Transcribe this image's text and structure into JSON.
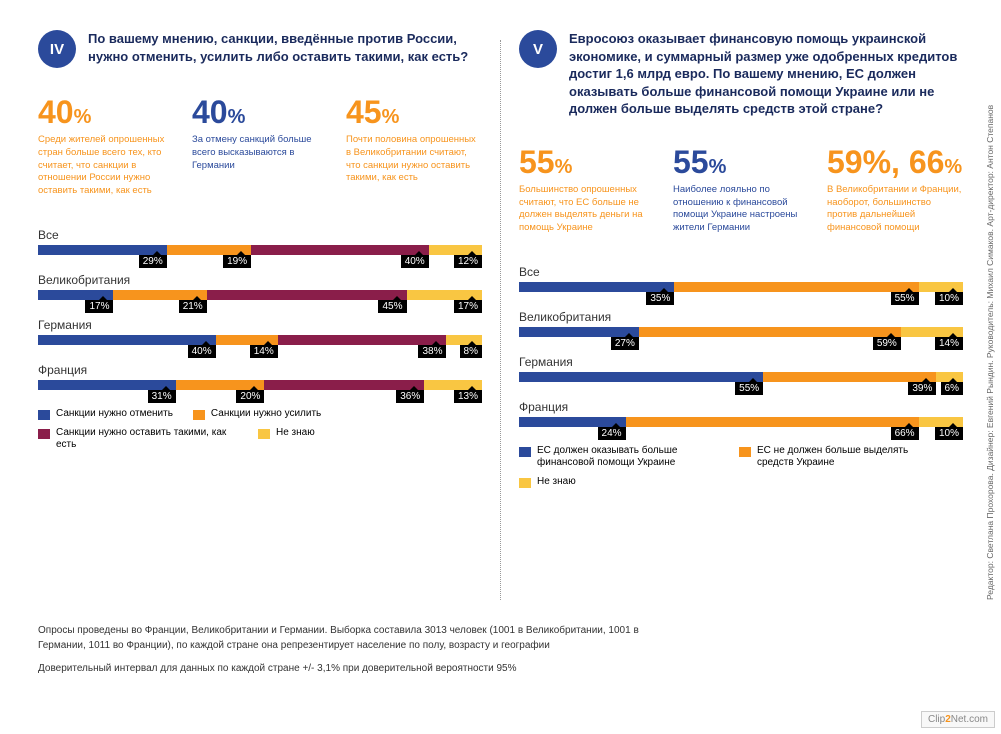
{
  "colors": {
    "blue": "#2b4a9b",
    "orange": "#f7941d",
    "maroon": "#8a1e4a",
    "yellow": "#f9c642",
    "text_dark": "#1a2a5c",
    "text_gray": "#555555"
  },
  "left": {
    "roman": "IV",
    "badge_color": "#2b4a9b",
    "question_color": "#1a2a5c",
    "question": "По вашему мнению, санкции, введённые против России, нужно отменить, усилить либо оставить такими, как есть?",
    "stats": [
      {
        "value": "40",
        "pct": "%",
        "color": "#f7941d",
        "desc": "Среди жителей опрошенных стран больше всего тех, кто считает, что санкции в отношении России нужно оставить такими, как есть"
      },
      {
        "value": "40",
        "pct": "%",
        "color": "#2b4a9b",
        "desc": "За отмену санкций больше всего высказываются в Германии"
      },
      {
        "value": "45",
        "pct": "%",
        "color": "#f7941d",
        "desc": "Почти половина опрошенных в Великобритании считают, что санкции нужно оставить такими, как есть"
      }
    ],
    "rows": [
      {
        "label": "Все",
        "segments": [
          {
            "w": 29,
            "c": "#2b4a9b",
            "v": "29%"
          },
          {
            "w": 19,
            "c": "#f7941d",
            "v": "19%"
          },
          {
            "w": 40,
            "c": "#8a1e4a",
            "v": "40%"
          },
          {
            "w": 12,
            "c": "#f9c642",
            "v": "12%"
          }
        ]
      },
      {
        "label": "Великобритания",
        "segments": [
          {
            "w": 17,
            "c": "#2b4a9b",
            "v": "17%"
          },
          {
            "w": 21,
            "c": "#f7941d",
            "v": "21%"
          },
          {
            "w": 45,
            "c": "#8a1e4a",
            "v": "45%"
          },
          {
            "w": 17,
            "c": "#f9c642",
            "v": "17%"
          }
        ]
      },
      {
        "label": "Германия",
        "segments": [
          {
            "w": 40,
            "c": "#2b4a9b",
            "v": "40%"
          },
          {
            "w": 14,
            "c": "#f7941d",
            "v": "14%"
          },
          {
            "w": 38,
            "c": "#8a1e4a",
            "v": "38%"
          },
          {
            "w": 8,
            "c": "#f9c642",
            "v": "8%"
          }
        ]
      },
      {
        "label": "Франция",
        "segments": [
          {
            "w": 31,
            "c": "#2b4a9b",
            "v": "31%"
          },
          {
            "w": 20,
            "c": "#f7941d",
            "v": "20%"
          },
          {
            "w": 36,
            "c": "#8a1e4a",
            "v": "36%"
          },
          {
            "w": 13,
            "c": "#f9c642",
            "v": "13%"
          }
        ]
      }
    ],
    "legend": [
      {
        "c": "#2b4a9b",
        "t": "Санкции нужно отменить"
      },
      {
        "c": "#f7941d",
        "t": "Санкции нужно усилить"
      },
      {
        "c": "#8a1e4a",
        "t": "Санкции нужно оставить такими, как есть"
      },
      {
        "c": "#f9c642",
        "t": "Не знаю"
      }
    ]
  },
  "right": {
    "roman": "V",
    "badge_color": "#2b4a9b",
    "question_color": "#1a2a5c",
    "question": "Евросоюз оказывает финансовую помощь украинской экономике, и суммарный размер уже одобренных кредитов достиг 1,6 млрд евро. По вашему мнению, ЕС должен оказывать больше финансовой помощи Украине или не должен больше выделять средств этой стране?",
    "stats": [
      {
        "value": "55",
        "pct": "%",
        "color": "#f7941d",
        "desc": "Большинство опрошенных считают, что ЕС больше не должен выделять деньги на помощь Украине"
      },
      {
        "value": "55",
        "pct": "%",
        "color": "#2b4a9b",
        "desc": "Наиболее лояльно по отношению к финансовой помощи Украине настроены жители Германии"
      },
      {
        "value": "59%, 66",
        "pct": "%",
        "color": "#f7941d",
        "desc": "В Великобритании и Франции, наоборот, большинство против дальнейшей финансовой помощи"
      }
    ],
    "rows": [
      {
        "label": "Все",
        "segments": [
          {
            "w": 35,
            "c": "#2b4a9b",
            "v": "35%"
          },
          {
            "w": 55,
            "c": "#f7941d",
            "v": "55%"
          },
          {
            "w": 10,
            "c": "#f9c642",
            "v": "10%"
          }
        ]
      },
      {
        "label": "Великобритания",
        "segments": [
          {
            "w": 27,
            "c": "#2b4a9b",
            "v": "27%"
          },
          {
            "w": 59,
            "c": "#f7941d",
            "v": "59%"
          },
          {
            "w": 14,
            "c": "#f9c642",
            "v": "14%"
          }
        ]
      },
      {
        "label": "Германия",
        "segments": [
          {
            "w": 55,
            "c": "#2b4a9b",
            "v": "55%"
          },
          {
            "w": 39,
            "c": "#f7941d",
            "v": "39%"
          },
          {
            "w": 6,
            "c": "#f9c642",
            "v": "6%"
          }
        ]
      },
      {
        "label": "Франция",
        "segments": [
          {
            "w": 24,
            "c": "#2b4a9b",
            "v": "24%"
          },
          {
            "w": 66,
            "c": "#f7941d",
            "v": "66%"
          },
          {
            "w": 10,
            "c": "#f9c642",
            "v": "10%"
          }
        ]
      }
    ],
    "legend": [
      {
        "c": "#2b4a9b",
        "t": "ЕС должен оказывать больше финансовой помощи Украине"
      },
      {
        "c": "#f7941d",
        "t": "ЕС не должен больше выделять средств Украине"
      },
      {
        "c": "#f9c642",
        "t": "Не знаю"
      }
    ]
  },
  "footnotes": {
    "l1": "Опросы проведены во Франции, Великобритании и Германии. Выборка составила 3013 человек (1001 в Великобритании, 1001 в Германии, 1011 во Франции), по каждой стране она репрезентирует население по полу, возрасту и географии",
    "l2": "Доверительный интервал для данных по каждой стране +/- 3,1% при доверительной вероятности 95%"
  },
  "side_credit": "Редактор: Светлана Прохорова. Дизайнер: Евгений Рындин. Руководитель: Михаил Симаков. Арт-директор: Антон Степанов",
  "watermark": {
    "a": "Clip",
    "b": "2",
    "c": "Net.com"
  }
}
